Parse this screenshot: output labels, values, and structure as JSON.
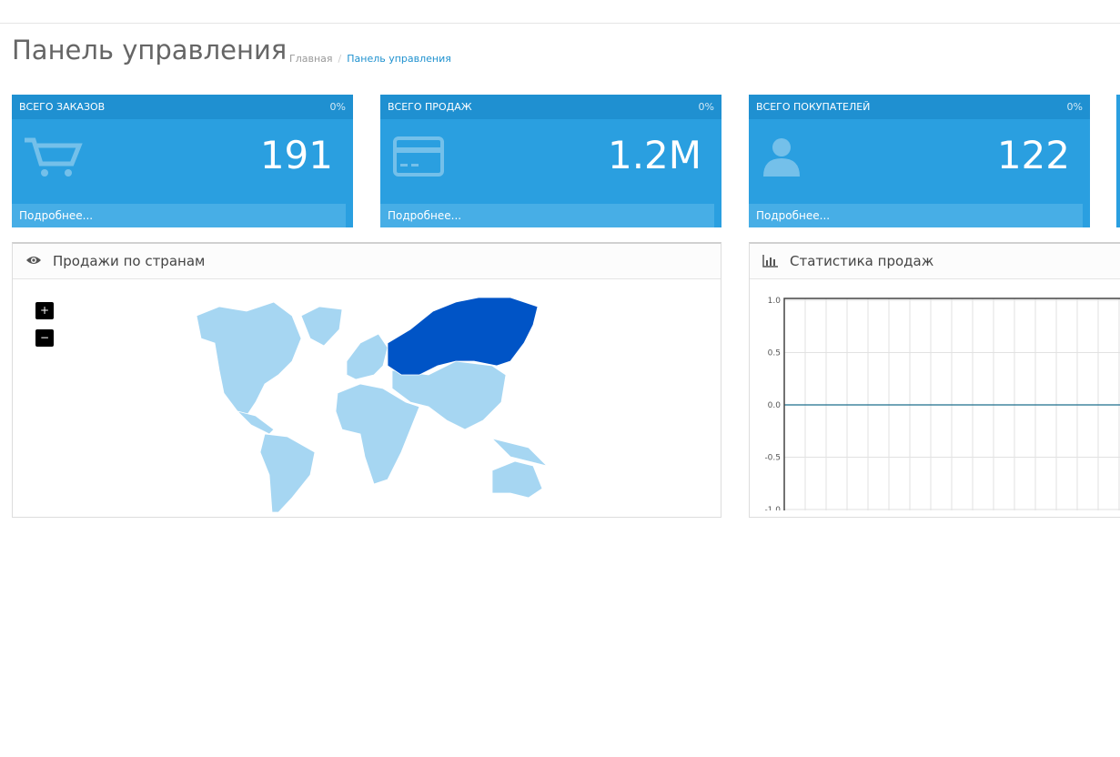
{
  "header": {
    "title": "Панель управления",
    "breadcrumb": [
      "Главная",
      "Панель управления"
    ]
  },
  "tiles": [
    {
      "title": "ВСЕГО ЗАКАЗОВ",
      "percent": "0%",
      "value": "191",
      "footer": "Подробнее..."
    },
    {
      "title": "ВСЕГО ПРОДАЖ",
      "percent": "0%",
      "value": "1.2M",
      "footer": "Подробнее..."
    },
    {
      "title": "ВСЕГО ПОКУПАТЕЛЕЙ",
      "percent": "0%",
      "value": "122",
      "footer": "Подробнее..."
    }
  ],
  "map_panel": {
    "title": "Продажи по странам",
    "zoom_in": "+",
    "zoom_out": "−"
  },
  "chart_panel": {
    "title": "Статистика продаж",
    "ylim": [
      -1,
      1
    ],
    "yticks": [
      {
        "value": 1,
        "label": "1.0"
      },
      {
        "value": 0.5,
        "label": "0.5"
      },
      {
        "value": 0,
        "label": "0.0"
      },
      {
        "value": -0.5,
        "label": "-0.5"
      },
      {
        "value": -1,
        "label": "-1.0"
      }
    ]
  }
}
